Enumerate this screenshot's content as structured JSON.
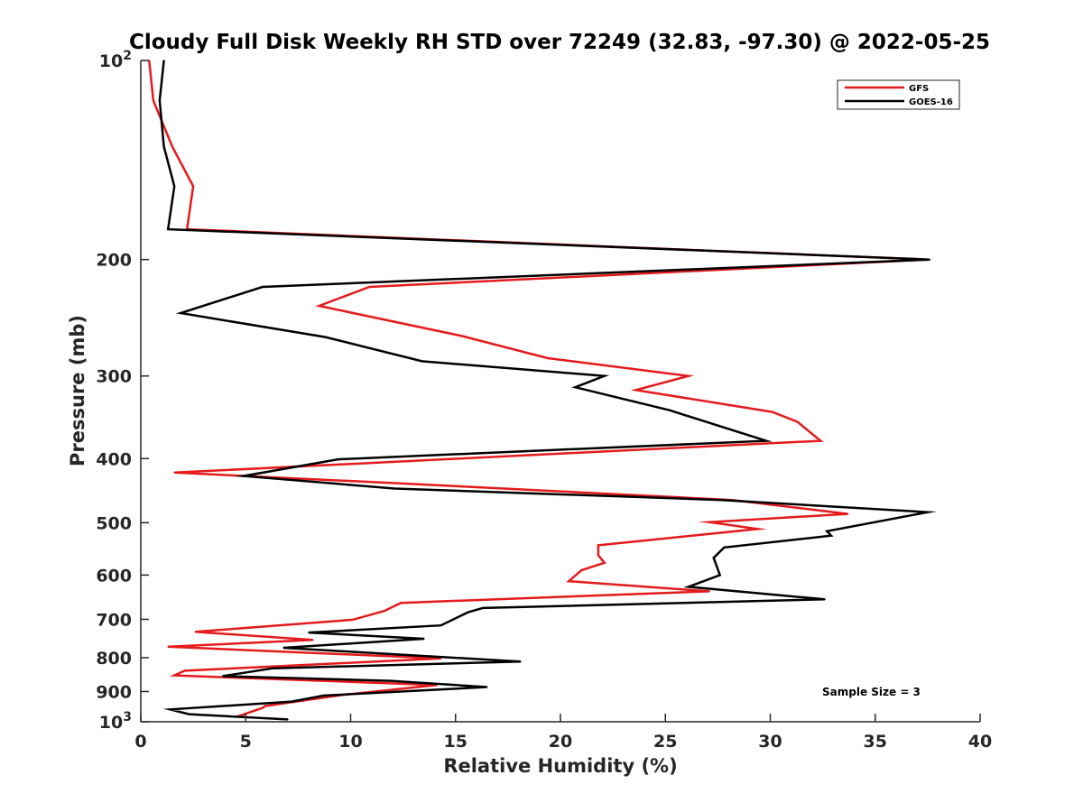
{
  "chart_data": {
    "type": "line",
    "title": "Cloudy Full Disk Weekly RH STD over 72249 (32.83, -97.30) @ 2022-05-25",
    "xlabel": "Relative Humidity (%)",
    "ylabel": "Pressure (mb)",
    "xlim": [
      0,
      40
    ],
    "ylim": [
      100,
      1000
    ],
    "y_scale": "log",
    "y_reversed": true,
    "grid": false,
    "legend_position": "top-right",
    "x_ticks": [
      "0",
      "5",
      "10",
      "15",
      "20",
      "25",
      "30",
      "35",
      "40"
    ],
    "y_ticks": [
      {
        "value": 100,
        "base": "10",
        "exp": "2"
      },
      {
        "value": 200,
        "label": "200"
      },
      {
        "value": 300,
        "label": "300"
      },
      {
        "value": 400,
        "label": "400"
      },
      {
        "value": 500,
        "label": "500"
      },
      {
        "value": 600,
        "label": "600"
      },
      {
        "value": 700,
        "label": "700"
      },
      {
        "value": 800,
        "label": "800"
      },
      {
        "value": 900,
        "label": "900"
      },
      {
        "value": 1000,
        "base": "10",
        "exp": "3"
      }
    ],
    "series": [
      {
        "name": "GFS",
        "color": "#e41a1c",
        "points": [
          [
            0.4,
            100
          ],
          [
            0.6,
            115
          ],
          [
            1.5,
            135
          ],
          [
            2.5,
            155
          ],
          [
            2.2,
            180
          ],
          [
            37.5,
            200
          ],
          [
            10.9,
            220
          ],
          [
            8.5,
            235
          ],
          [
            15.3,
            261
          ],
          [
            19.4,
            282
          ],
          [
            26.1,
            300
          ],
          [
            23.6,
            315
          ],
          [
            30.1,
            340
          ],
          [
            31.3,
            352
          ],
          [
            32.4,
            376
          ],
          [
            1.6,
            420
          ],
          [
            13.0,
            437
          ],
          [
            28.2,
            462
          ],
          [
            33.7,
            485
          ],
          [
            27.1,
            499
          ],
          [
            29.4,
            511
          ],
          [
            21.8,
            541
          ],
          [
            21.8,
            560
          ],
          [
            22.1,
            575
          ],
          [
            21.0,
            590
          ],
          [
            20.4,
            613
          ],
          [
            27.1,
            635
          ],
          [
            12.4,
            661
          ],
          [
            11.6,
            680
          ],
          [
            10.1,
            701
          ],
          [
            2.6,
            731
          ],
          [
            8.2,
            752
          ],
          [
            1.3,
            770
          ],
          [
            14.3,
            802
          ],
          [
            2.1,
            837
          ],
          [
            1.6,
            851
          ],
          [
            14.1,
            880
          ],
          [
            9.6,
            911
          ],
          [
            5.9,
            947
          ],
          [
            5.8,
            953
          ],
          [
            4.6,
            982
          ]
        ]
      },
      {
        "name": "GOES-16",
        "color": "#000000",
        "points": [
          [
            1.1,
            100
          ],
          [
            0.9,
            115
          ],
          [
            1.1,
            135
          ],
          [
            1.6,
            155
          ],
          [
            1.3,
            180
          ],
          [
            37.6,
            200
          ],
          [
            5.8,
            220
          ],
          [
            1.9,
            241
          ],
          [
            8.8,
            262
          ],
          [
            13.4,
            285
          ],
          [
            22.1,
            300
          ],
          [
            20.7,
            312
          ],
          [
            25.2,
            338
          ],
          [
            29.8,
            376
          ],
          [
            9.4,
            401
          ],
          [
            4.9,
            425
          ],
          [
            12.1,
            444
          ],
          [
            27.7,
            462
          ],
          [
            37.5,
            482
          ],
          [
            32.7,
            515
          ],
          [
            32.9,
            523
          ],
          [
            27.8,
            545
          ],
          [
            27.3,
            565
          ],
          [
            27.6,
            600
          ],
          [
            26.1,
            625
          ],
          [
            32.6,
            653
          ],
          [
            16.3,
            673
          ],
          [
            15.6,
            683
          ],
          [
            14.3,
            715
          ],
          [
            8.0,
            733
          ],
          [
            13.5,
            749
          ],
          [
            6.8,
            773
          ],
          [
            18.1,
            811
          ],
          [
            6.3,
            830
          ],
          [
            3.9,
            853
          ],
          [
            11.9,
            867
          ],
          [
            16.5,
            886
          ],
          [
            8.7,
            913
          ],
          [
            7.2,
            932
          ],
          [
            1.4,
            958
          ],
          [
            2.3,
            974
          ],
          [
            7.0,
            992
          ]
        ]
      }
    ],
    "annotation": "Sample Size = 3"
  }
}
